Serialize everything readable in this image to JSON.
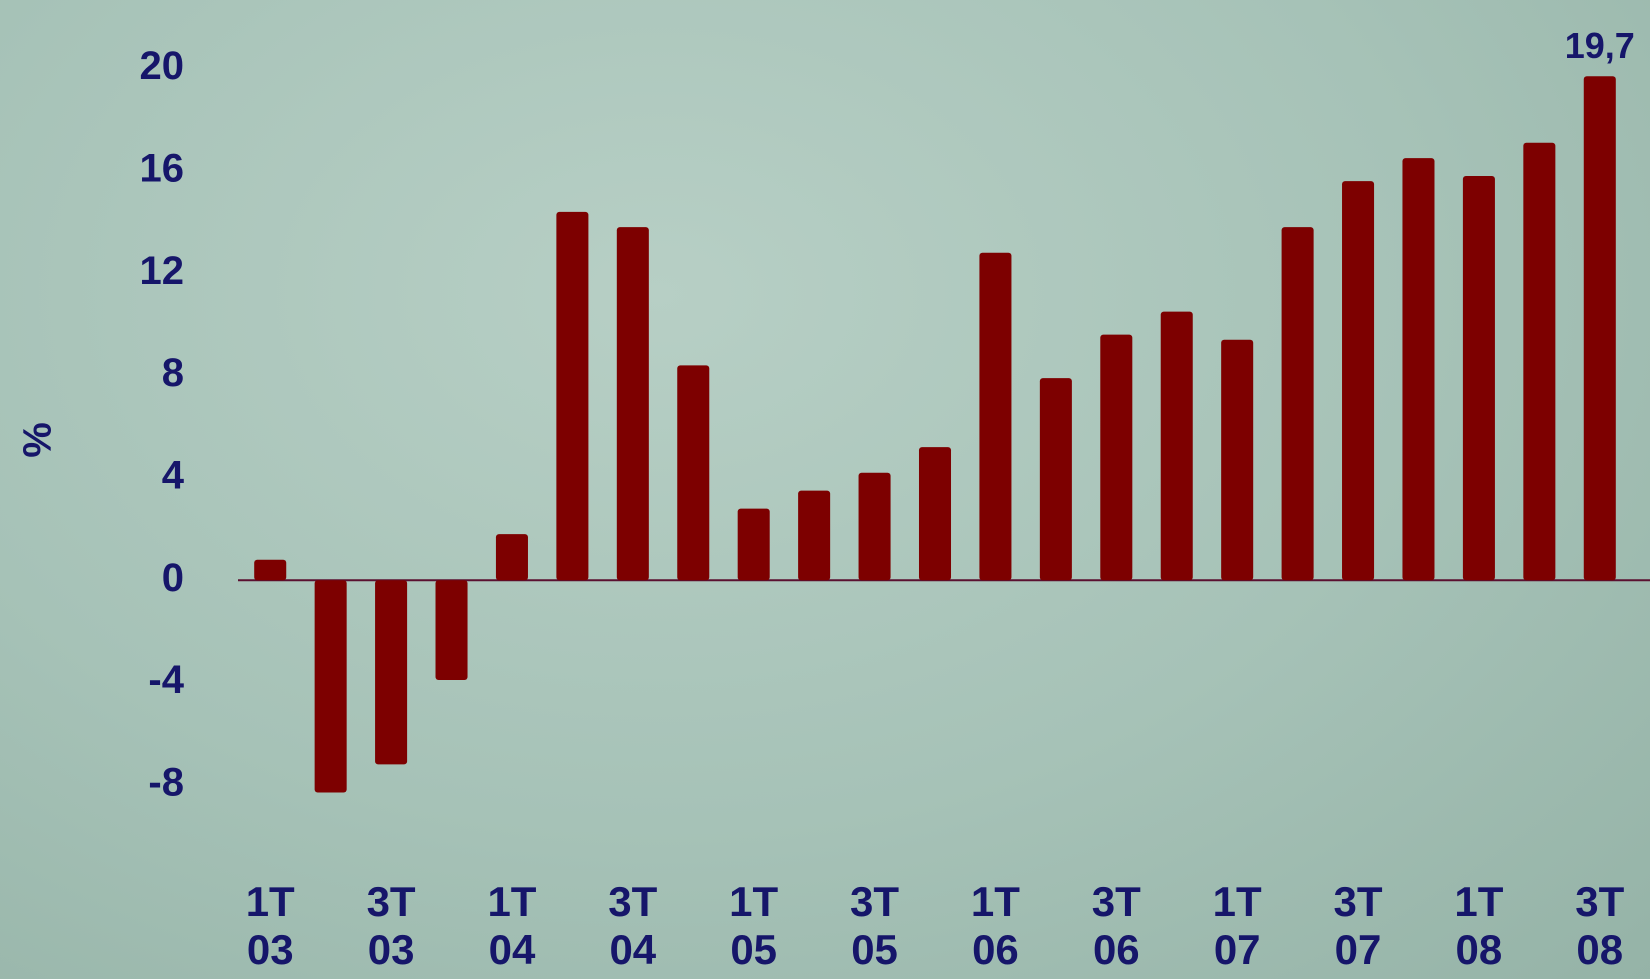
{
  "chart_data": {
    "type": "bar",
    "y_label": "%",
    "categories": [
      "1T 03",
      null,
      "3T 03",
      null,
      "1T 04",
      null,
      "3T 04",
      null,
      "1T 05",
      null,
      "3T 05",
      null,
      "1T 06",
      null,
      "3T 06",
      null,
      "1T 07",
      null,
      "3T 07",
      null,
      "1T 08",
      null,
      "3T 08"
    ],
    "values": [
      0.8,
      -8.3,
      -7.2,
      -3.9,
      1.8,
      14.4,
      13.8,
      8.4,
      2.8,
      3.5,
      4.2,
      5.2,
      12.8,
      7.9,
      9.6,
      10.5,
      9.4,
      13.8,
      15.6,
      16.5,
      15.8,
      17.1,
      19.7
    ],
    "value_labels": [
      null,
      null,
      null,
      null,
      null,
      null,
      null,
      null,
      null,
      null,
      null,
      null,
      null,
      null,
      null,
      null,
      null,
      null,
      null,
      null,
      null,
      null,
      "19,7"
    ],
    "color": "#7d0000",
    "ylim": [
      -10,
      21
    ],
    "yticks": [
      -8,
      -4,
      0,
      4,
      8,
      12,
      16,
      20
    ],
    "grid": false
  }
}
